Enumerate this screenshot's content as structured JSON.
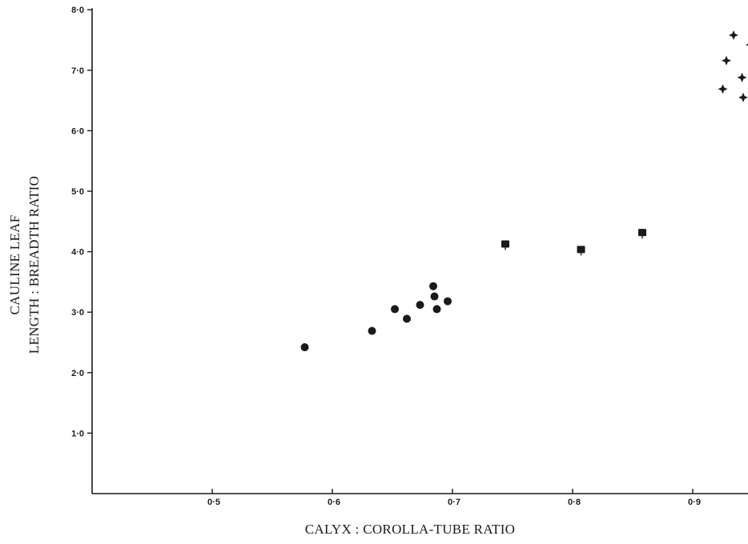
{
  "chart_data": {
    "type": "scatter",
    "title": "",
    "xlabel": "CALYX : COROLLA-TUBE RATIO",
    "ylabel": [
      "CAULINE LEAF",
      "LENGTH : BREADTH RATIO"
    ],
    "xlim": [
      0.4,
      0.95
    ],
    "ylim": [
      0.0,
      8.0
    ],
    "x_ticks": [
      0.5,
      0.6,
      0.7,
      0.8,
      0.9
    ],
    "x_tick_labels": [
      "0·5",
      "0·6",
      "0·7",
      "0·8",
      "0·9"
    ],
    "y_ticks": [
      1.0,
      2.0,
      3.0,
      4.0,
      5.0,
      6.0,
      7.0,
      8.0
    ],
    "y_tick_labels": [
      "1·0",
      "2·0",
      "3·0",
      "4·0",
      "5·0",
      "6·0",
      "7·0",
      "8·0"
    ],
    "grid": false,
    "legend": "none",
    "series": [
      {
        "marker": "circle",
        "points": [
          {
            "x": 0.577,
            "y": 2.42
          },
          {
            "x": 0.633,
            "y": 2.69
          },
          {
            "x": 0.652,
            "y": 3.05
          },
          {
            "x": 0.662,
            "y": 2.89
          },
          {
            "x": 0.673,
            "y": 3.12
          },
          {
            "x": 0.684,
            "y": 3.43
          },
          {
            "x": 0.685,
            "y": 3.26
          },
          {
            "x": 0.687,
            "y": 3.05
          },
          {
            "x": 0.696,
            "y": 3.18
          }
        ]
      },
      {
        "marker": "square",
        "points": [
          {
            "x": 0.744,
            "y": 4.12
          },
          {
            "x": 0.807,
            "y": 4.03
          },
          {
            "x": 0.858,
            "y": 4.31
          }
        ]
      },
      {
        "marker": "star",
        "points": [
          {
            "x": 0.925,
            "y": 6.69
          },
          {
            "x": 0.928,
            "y": 7.16
          },
          {
            "x": 0.934,
            "y": 7.58
          },
          {
            "x": 0.941,
            "y": 6.88
          },
          {
            "x": 0.942,
            "y": 6.55
          },
          {
            "x": 0.948,
            "y": 7.42
          }
        ]
      }
    ],
    "colors": {
      "ink": "#1a1a1a",
      "background": "#ffffff"
    }
  }
}
